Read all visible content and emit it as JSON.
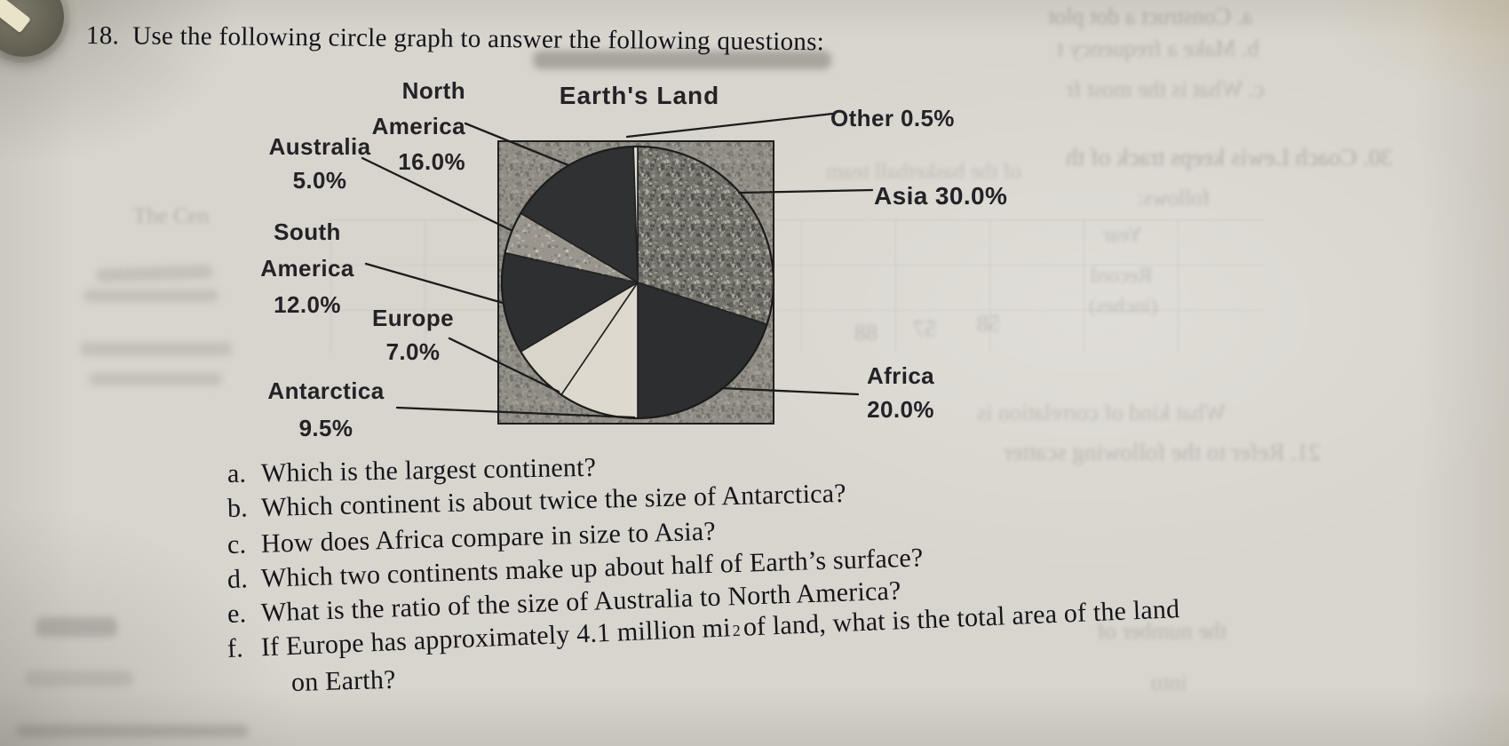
{
  "heading": {
    "number": "18.",
    "text": "Use the following circle graph to answer the following questions:"
  },
  "chart_data": {
    "type": "pie",
    "title": "Earth's Land",
    "start_angle_deg": 0,
    "direction": "clockwise",
    "slices": [
      {
        "name": "Asia",
        "value": 30.0,
        "color": "#74736c",
        "texture": "speckle"
      },
      {
        "name": "Africa",
        "value": 20.0,
        "color": "#2c2e30",
        "texture": "none"
      },
      {
        "name": "Antarctica",
        "value": 9.5,
        "color": "#ded9cf",
        "texture": "none"
      },
      {
        "name": "Europe",
        "value": 7.0,
        "color": "#d9d5ca",
        "texture": "none"
      },
      {
        "name": "South America",
        "value": 12.0,
        "color": "#2d2f31",
        "texture": "none"
      },
      {
        "name": "Australia",
        "value": 5.0,
        "color": "#9a968e",
        "texture": "speckle-light"
      },
      {
        "name": "North America",
        "value": 16.0,
        "color": "#2f3133",
        "texture": "none"
      },
      {
        "name": "Other",
        "value": 0.5,
        "color": "#e3e0d7",
        "texture": "none"
      }
    ],
    "colors": {
      "paper": "#d8d5ce",
      "square_background": "#8f8d85",
      "line": "#1c1c1c"
    },
    "labels_display": {
      "chart_title": "Earth's Land",
      "north_america": [
        "North",
        "America",
        "16.0%"
      ],
      "australia": [
        "Australia",
        "5.0%"
      ],
      "south_america": [
        "South",
        "America",
        "12.0%"
      ],
      "europe": [
        "Europe",
        "7.0%"
      ],
      "antarctica": [
        "Antarctica",
        "9.5%"
      ],
      "other": "Other 0.5%",
      "asia": "Asia 30.0%",
      "africa": [
        "Africa",
        "20.0%"
      ]
    }
  },
  "questions": {
    "items": [
      {
        "letter": "a.",
        "text": "Which is the largest continent?"
      },
      {
        "letter": "b.",
        "text": "Which continent is about twice the size of Antarctica?"
      },
      {
        "letter": "c.",
        "text": "How does Africa compare in size to Asia?"
      },
      {
        "letter": "d.",
        "text": "Which two continents make up about half of Earth’s surface?"
      },
      {
        "letter": "e.",
        "text": "What is the ratio of the size of Australia to North America?"
      },
      {
        "letter": "f.",
        "text_pre": "If Europe has approximately 4.1 million mi",
        "sup": "2",
        "text_post": "of land, what is the total area of the land",
        "text_line2": "on Earth?"
      }
    ]
  },
  "bleedthrough": {
    "fragments": [
      {
        "text": "a.  Construct a dot plot"
      },
      {
        "text": "b.  Make a frequency t"
      },
      {
        "text": "c.  What is the most fr"
      },
      {
        "text": "30. Coach Lewis keeps track of th"
      },
      {
        "text": "of the basketball team"
      },
      {
        "text": "follows:"
      },
      {
        "text": "Year"
      },
      {
        "text": "Record"
      },
      {
        "text": "(inches)"
      },
      {
        "text": "88"
      },
      {
        "text": "57"
      },
      {
        "text": "58"
      },
      {
        "text": "What kind of correlation is"
      },
      {
        "text": "21. Refer to the following scatter"
      },
      {
        "text": "the number of"
      },
      {
        "text": "into"
      },
      {
        "text": "The Cen"
      }
    ]
  }
}
